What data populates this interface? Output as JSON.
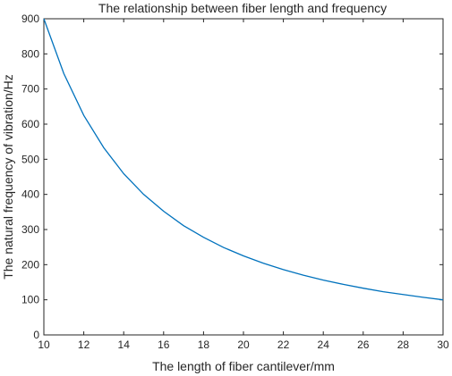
{
  "chart_data": {
    "type": "line",
    "title": "The relationship between fiber length and frequency",
    "xlabel": "The length of fiber cantilever/mm",
    "ylabel": "The natural frequency of vibration/Hz",
    "xlim": [
      10,
      30
    ],
    "ylim": [
      0,
      900
    ],
    "grid": false,
    "xticks": [
      "10",
      "12",
      "14",
      "16",
      "18",
      "20",
      "22",
      "24",
      "26",
      "28",
      "30"
    ],
    "yticks": [
      "0",
      "100",
      "200",
      "300",
      "400",
      "500",
      "600",
      "700",
      "800",
      "900"
    ],
    "line_color": "#0072bd",
    "series": [
      {
        "x": [
          10,
          11,
          12,
          13,
          14,
          15,
          16,
          17,
          18,
          19,
          20,
          21,
          22,
          23,
          24,
          25,
          26,
          27,
          28,
          29,
          30
        ],
        "values": [
          900,
          744,
          625,
          533,
          459,
          400,
          352,
          311,
          278,
          249,
          225,
          204,
          186,
          170,
          156,
          144,
          133,
          123,
          115,
          107,
          100
        ]
      }
    ]
  }
}
